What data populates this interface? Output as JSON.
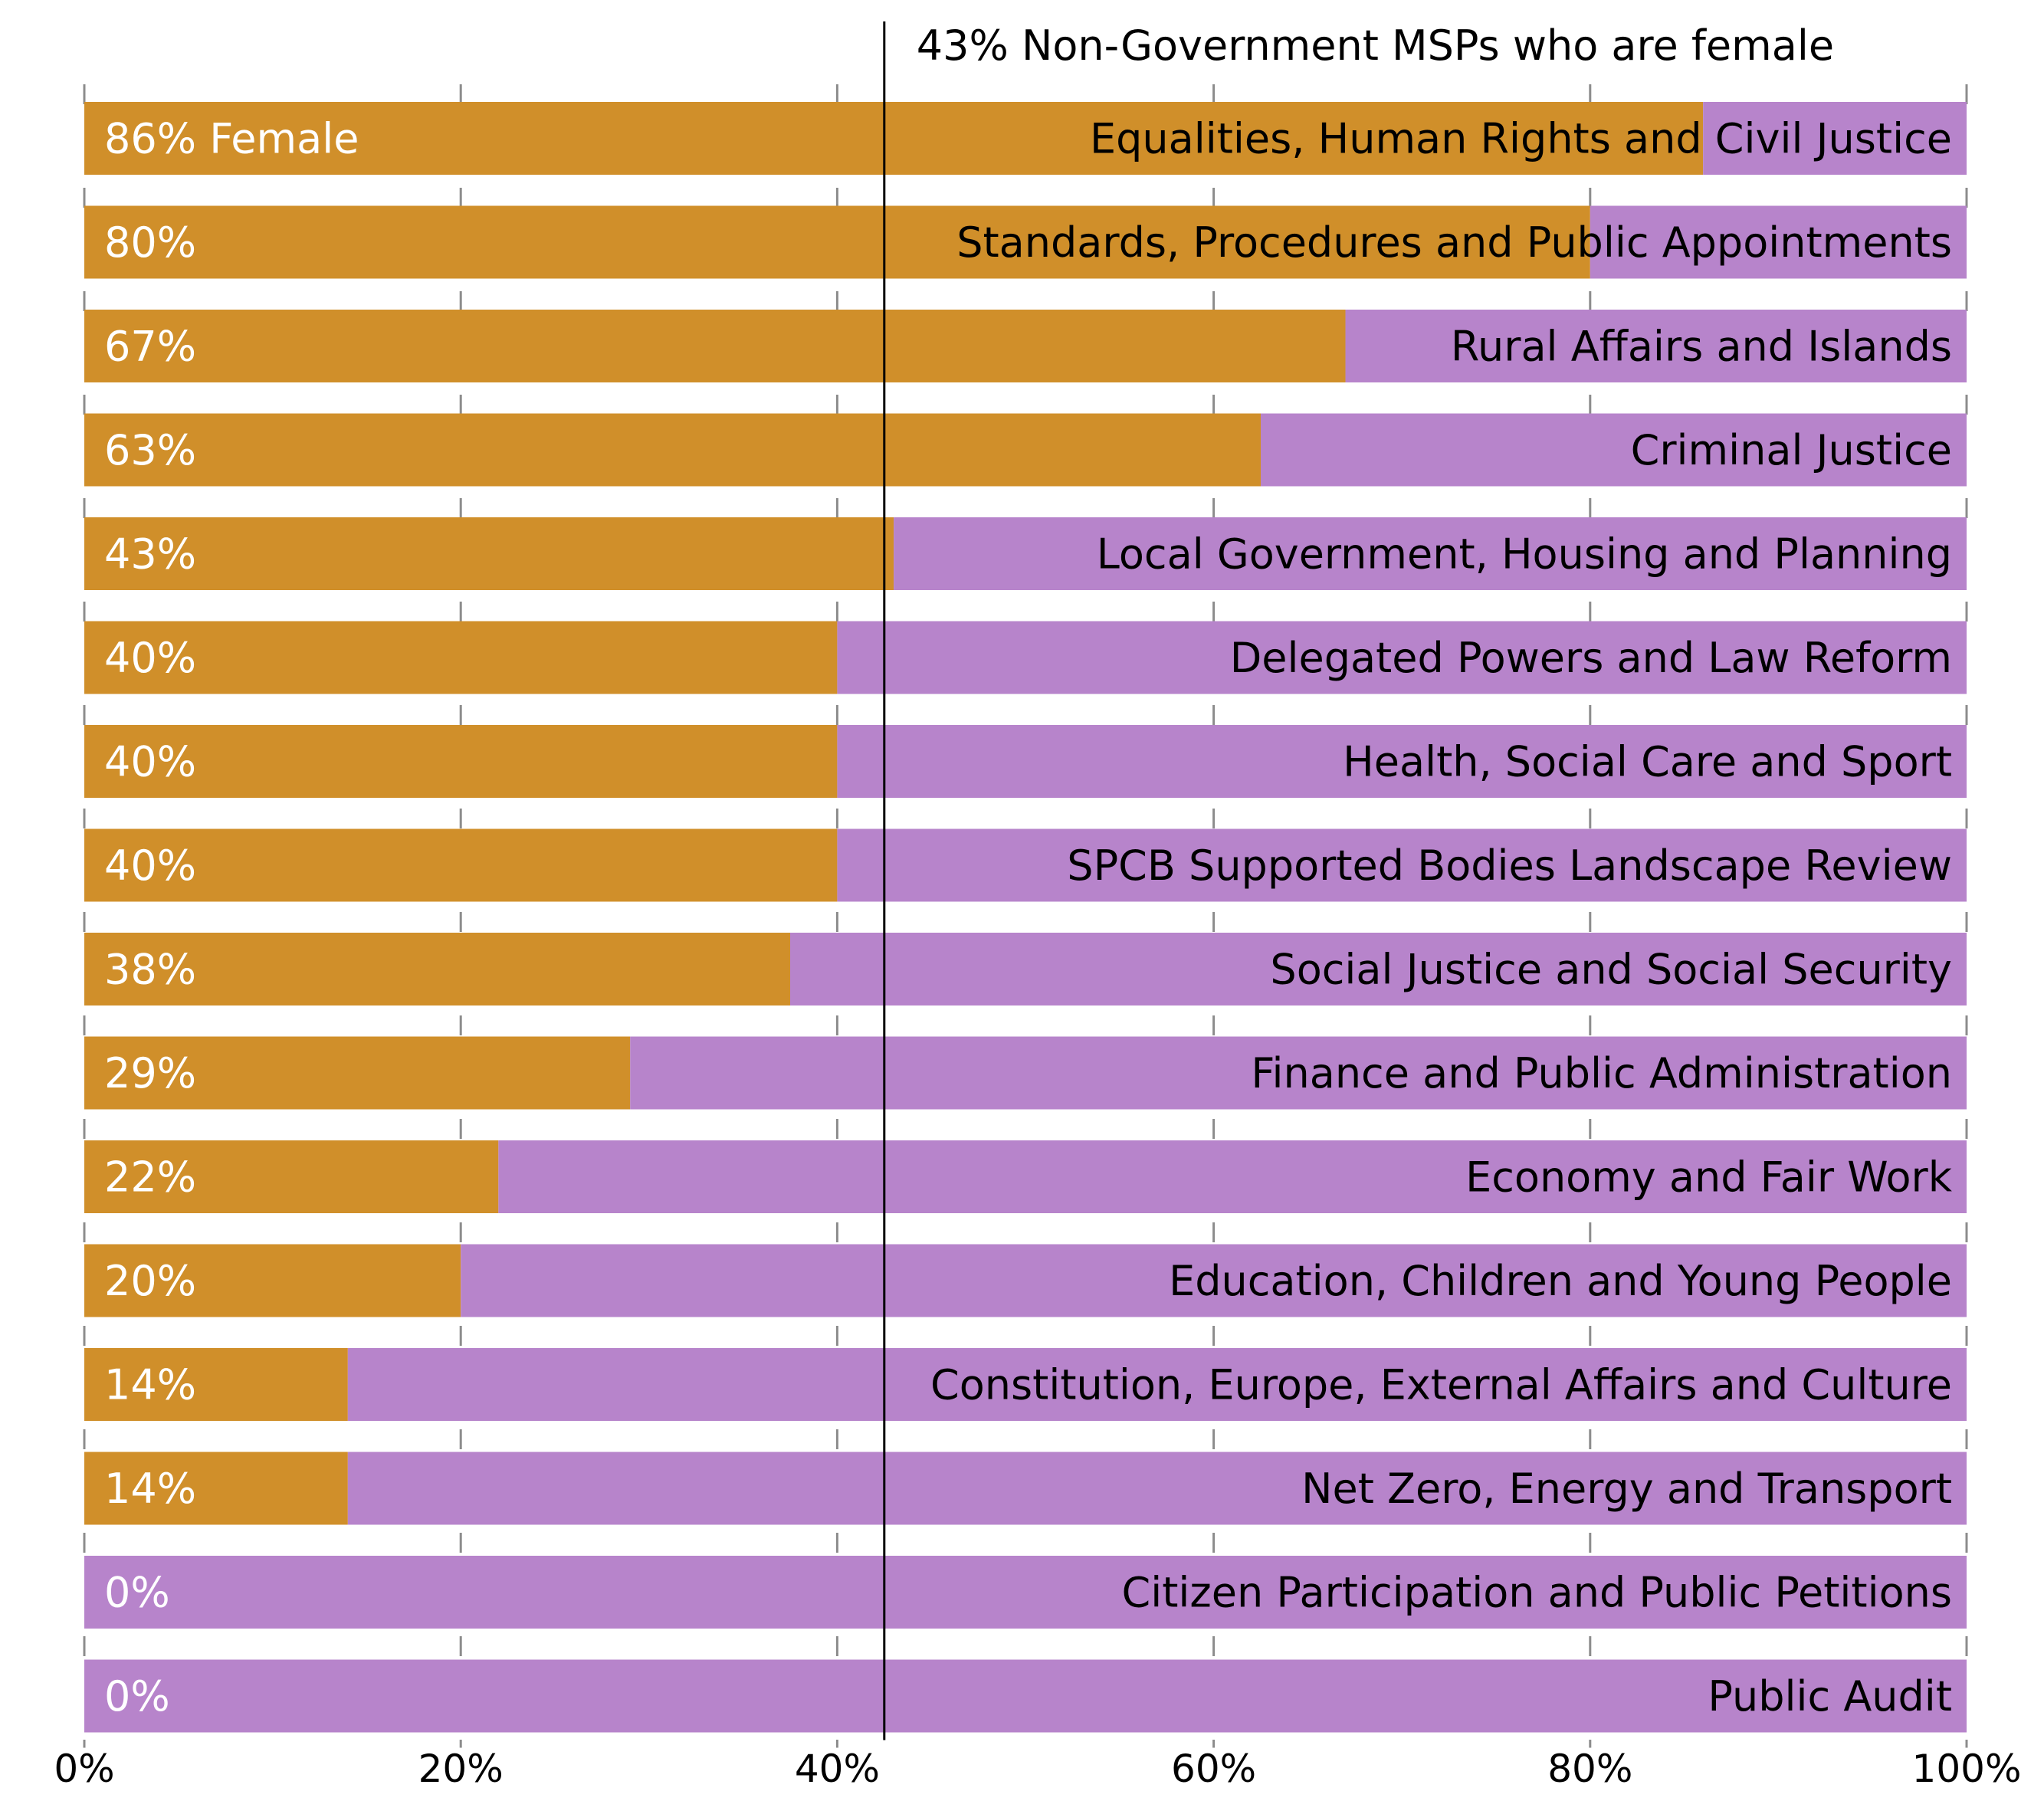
{
  "chart_data": {
    "type": "bar",
    "orientation": "horizontal",
    "stacked": true,
    "percent_scale": true,
    "categories": [
      "Equalities, Human Rights and Civil Justice",
      "Standards, Procedures and Public Appointments",
      "Rural Affairs and Islands",
      "Criminal Justice",
      "Local Government, Housing and Planning",
      "Delegated Powers and Law Reform",
      "Health, Social Care and Sport",
      "SPCB Supported Bodies Landscape Review",
      "Social Justice and Social Security",
      "Finance and Public Administration",
      "Economy and Fair Work",
      "Education, Children and Young People",
      "Constitution, Europe, External Affairs and Culture",
      "Net Zero, Energy and Transport",
      "Citizen Participation and Public Petitions",
      "Public Audit"
    ],
    "series": [
      {
        "name": "Female",
        "color": "#d08f2a",
        "values": [
          86,
          80,
          67,
          62.5,
          43,
          40,
          40,
          40,
          37.5,
          29,
          22,
          20,
          14,
          14,
          0,
          0
        ]
      },
      {
        "color": "#b784cb",
        "values": [
          14,
          20,
          33,
          37.5,
          57,
          60,
          60,
          60,
          62.5,
          71,
          78,
          80,
          86,
          86,
          100,
          100
        ]
      }
    ],
    "value_labels": [
      "86% Female",
      "80%",
      "67%",
      "63%",
      "43%",
      "40%",
      "40%",
      "40%",
      "38%",
      "29%",
      "22%",
      "20%",
      "14%",
      "14%",
      "0%",
      "0%"
    ],
    "reference_line": {
      "value": 42.5,
      "label": "43% Non-Government MSPs who are female"
    },
    "x_ticks": [
      0,
      20,
      40,
      60,
      80,
      100
    ],
    "x_tick_labels": [
      "0%",
      "20%",
      "40%",
      "60%",
      "80%",
      "100%"
    ],
    "xlim": [
      0,
      100
    ],
    "grid": "vertical dashed",
    "title": "",
    "xlabel": "",
    "ylabel": ""
  }
}
